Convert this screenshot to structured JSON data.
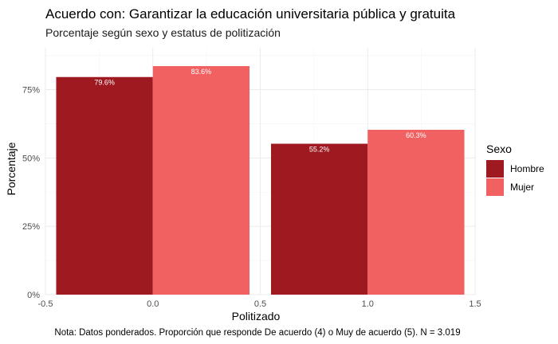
{
  "chart_data": {
    "type": "bar",
    "title": "Acuerdo con: Garantizar la educación universitaria pública y gratuita",
    "subtitle": "Porcentaje según sexo y estatus de politización",
    "xlabel": "Politizado",
    "ylabel": "Porcentaje",
    "caption": "Nota: Datos ponderados. Proporción que responde De acuerdo (4) o Muy de acuerdo (5). N = 3.019",
    "x_ticks": [
      "-0.5",
      "0.0",
      "0.5",
      "1.0",
      "1.5"
    ],
    "y_ticks": [
      "0%",
      "25%",
      "50%",
      "75%"
    ],
    "xlim": [
      -0.5,
      1.5
    ],
    "ylim": [
      0,
      0.836
    ],
    "categories": [
      0,
      1
    ],
    "legend_title": "Sexo",
    "legend_position": "right",
    "grid": true,
    "series": [
      {
        "name": "Hombre",
        "color": "#9E1A20",
        "values": [
          0.796,
          0.552
        ],
        "labels": [
          "79.6%",
          "55.2%"
        ]
      },
      {
        "name": "Mujer",
        "color": "#F26161",
        "values": [
          0.836,
          0.603
        ],
        "labels": [
          "83.6%",
          "60.3%"
        ]
      }
    ]
  }
}
